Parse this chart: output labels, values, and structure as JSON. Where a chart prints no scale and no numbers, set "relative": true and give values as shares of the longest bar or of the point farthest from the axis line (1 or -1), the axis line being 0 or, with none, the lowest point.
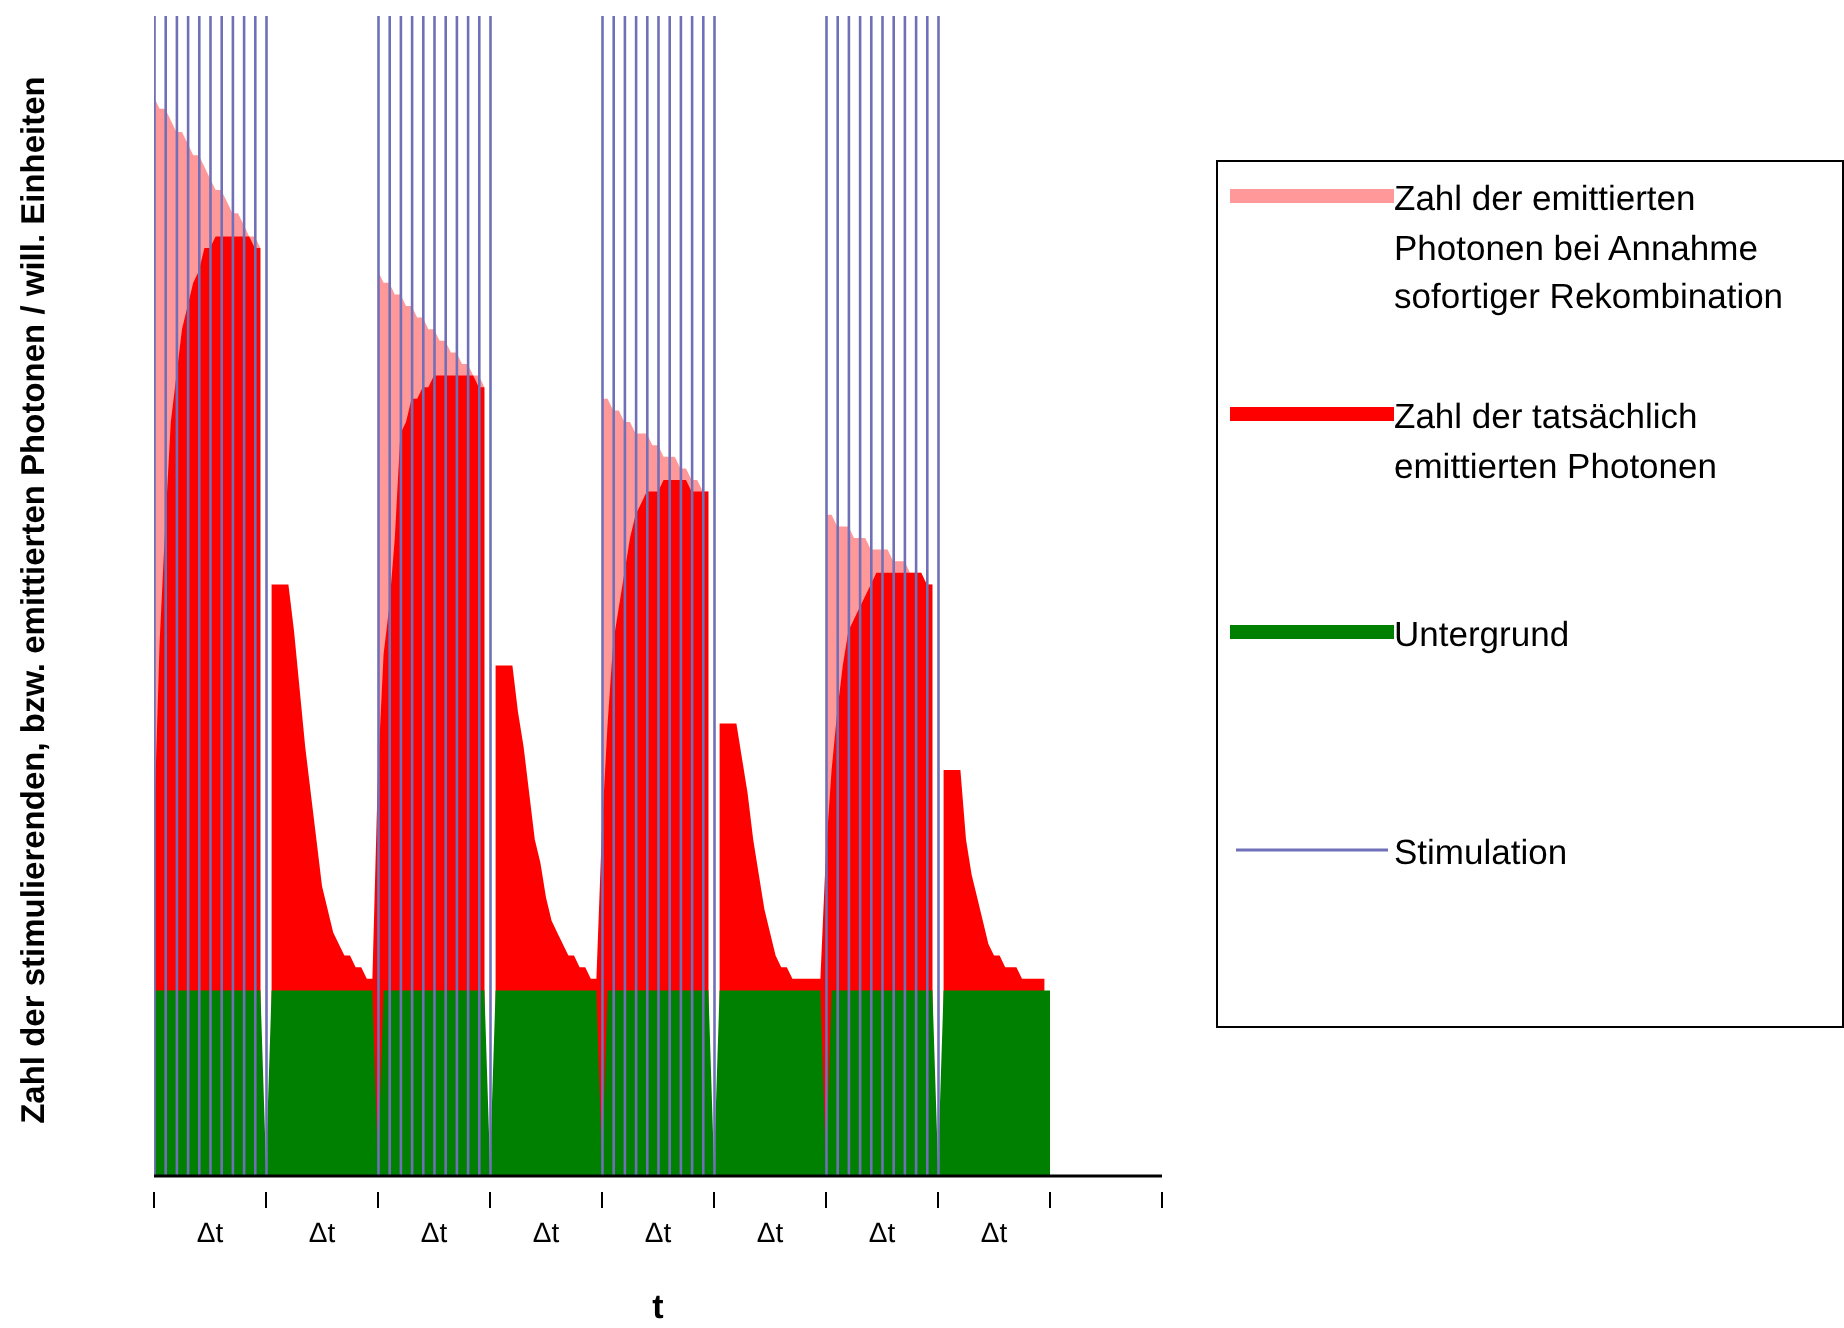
{
  "chart_data": {
    "type": "area",
    "relative": true,
    "xlabel": "t",
    "ylabel": "Zahl der stimulierenden, bzw. emittierten Photonen / will. Einheiten",
    "legend": "right",
    "categories": [
      null,
      null,
      null,
      null,
      null,
      null,
      null,
      null,
      null,
      null,
      "Δt",
      null,
      null,
      null,
      null,
      null,
      null,
      null,
      null,
      null,
      null,
      null,
      null,
      null,
      null,
      null,
      null,
      null,
      null,
      null,
      "Δt",
      null,
      null,
      null,
      null,
      null,
      null,
      null,
      null,
      null,
      null,
      null,
      null,
      null,
      null,
      null,
      null,
      null,
      null,
      null,
      "Δt",
      null,
      null,
      null,
      null,
      null,
      null,
      null,
      null,
      null,
      null,
      null,
      null,
      null,
      null,
      null,
      null,
      null,
      null,
      null,
      "Δt",
      null,
      null,
      null,
      null,
      null,
      null,
      null,
      null,
      null,
      null,
      null,
      null,
      null,
      null,
      null,
      null,
      null,
      null,
      null,
      "Δt",
      null,
      null,
      null,
      null,
      null,
      null,
      null,
      null,
      null,
      null,
      null,
      null,
      null,
      null,
      null,
      null,
      null,
      null,
      null,
      "Δt",
      null,
      null,
      null,
      null,
      null,
      null,
      null,
      null,
      null,
      null,
      null,
      null,
      null,
      null,
      null,
      null,
      null,
      null,
      null,
      "Δt",
      null,
      null,
      null,
      null,
      null,
      null,
      null,
      null,
      null,
      null,
      null,
      null,
      null,
      null,
      null,
      null,
      null,
      null,
      null,
      "Δt",
      null,
      null,
      null,
      null,
      null,
      null,
      null,
      null,
      null,
      null,
      null,
      null,
      null,
      null,
      null,
      null,
      null,
      null,
      null,
      null,
      null,
      null,
      null,
      null,
      null,
      null,
      null,
      null,
      null,
      null
    ],
    "series": [
      {
        "name": "Zahl der emittierten Photonen bei Annahme sofortiger Rekombination",
        "color": "#ff9999",
        "values": [
          0.93,
          0.92,
          0.92,
          0.91,
          0.9,
          0.9,
          0.89,
          0.88,
          0.88,
          0.87,
          0.86,
          0.85,
          0.85,
          0.84,
          0.83,
          0.83,
          0.82,
          0.81,
          0.81,
          0.8,
          null,
          null,
          null,
          null,
          null,
          null,
          null,
          null,
          null,
          null,
          null,
          null,
          null,
          null,
          null,
          null,
          null,
          null,
          null,
          null,
          0.78,
          0.77,
          0.77,
          0.76,
          0.76,
          0.75,
          0.75,
          0.74,
          0.74,
          0.73,
          0.73,
          0.72,
          0.72,
          0.71,
          0.71,
          0.7,
          0.7,
          0.69,
          0.69,
          0.68,
          null,
          null,
          null,
          null,
          null,
          null,
          null,
          null,
          null,
          null,
          null,
          null,
          null,
          null,
          null,
          null,
          null,
          null,
          null,
          null,
          0.67,
          0.67,
          0.66,
          0.66,
          0.65,
          0.65,
          0.64,
          0.64,
          0.64,
          0.63,
          0.63,
          0.62,
          0.62,
          0.62,
          0.61,
          0.61,
          0.6,
          0.6,
          0.59,
          0.59,
          null,
          null,
          null,
          null,
          null,
          null,
          null,
          null,
          null,
          null,
          null,
          null,
          null,
          null,
          null,
          null,
          null,
          null,
          null,
          null,
          0.57,
          0.57,
          0.56,
          0.56,
          0.56,
          0.55,
          0.55,
          0.55,
          0.54,
          0.54,
          0.54,
          0.54,
          0.53,
          0.53,
          0.53,
          0.52,
          0.52,
          0.52,
          0.51,
          0.51,
          null,
          null,
          null,
          null,
          null,
          null,
          null,
          null,
          null,
          null,
          null,
          null,
          null,
          null,
          null,
          null,
          null,
          null,
          null,
          null,
          null,
          null,
          null,
          null,
          null,
          null,
          null,
          null,
          null,
          null,
          null,
          null,
          null,
          null,
          null,
          null,
          null,
          null,
          null,
          null,
          null
        ]
      },
      {
        "name": "Zahl der tatsächlich emittierten Photonen",
        "color": "#ff0000",
        "values": [
          0.3,
          0.46,
          0.56,
          0.65,
          0.69,
          0.73,
          0.75,
          0.77,
          0.78,
          0.8,
          0.8,
          0.81,
          0.81,
          0.81,
          0.81,
          0.81,
          0.81,
          0.81,
          0.8,
          0.8,
          null,
          0.51,
          0.51,
          0.51,
          0.51,
          0.47,
          0.42,
          0.37,
          0.33,
          0.29,
          0.25,
          0.23,
          0.21,
          0.2,
          0.19,
          0.19,
          0.18,
          0.18,
          0.17,
          0.17,
          0.35,
          0.45,
          0.49,
          0.55,
          0.64,
          0.65,
          0.67,
          0.67,
          0.68,
          0.68,
          0.69,
          0.69,
          0.69,
          0.69,
          0.69,
          0.69,
          0.69,
          0.69,
          0.68,
          0.68,
          null,
          0.44,
          0.44,
          0.44,
          0.44,
          0.4,
          0.37,
          0.33,
          0.29,
          0.27,
          0.24,
          0.22,
          0.21,
          0.2,
          0.19,
          0.19,
          0.18,
          0.18,
          0.17,
          0.17,
          0.3,
          0.39,
          0.46,
          0.49,
          0.52,
          0.55,
          0.57,
          0.58,
          0.59,
          0.59,
          0.59,
          0.6,
          0.6,
          0.6,
          0.6,
          0.6,
          0.59,
          0.59,
          0.59,
          0.59,
          null,
          0.39,
          0.39,
          0.39,
          0.39,
          0.36,
          0.33,
          0.29,
          0.26,
          0.23,
          0.21,
          0.19,
          0.18,
          0.18,
          0.17,
          0.17,
          0.17,
          0.17,
          0.17,
          0.17,
          0.28,
          0.35,
          0.4,
          0.44,
          0.47,
          0.48,
          0.49,
          0.5,
          0.51,
          0.52,
          0.52,
          0.52,
          0.52,
          0.52,
          0.52,
          0.52,
          0.52,
          0.52,
          0.51,
          0.51,
          null,
          0.35,
          0.35,
          0.35,
          0.35,
          0.29,
          0.26,
          0.24,
          0.22,
          0.2,
          0.19,
          0.19,
          0.18,
          0.18,
          0.18,
          0.17,
          0.17,
          0.17,
          0.17,
          0.17,
          null,
          null,
          null,
          null,
          null,
          null,
          null,
          null,
          null,
          null,
          null,
          null,
          null,
          null,
          null,
          null,
          null,
          null,
          null,
          null,
          null
        ]
      },
      {
        "name": "Untergrund",
        "color": "#008000",
        "values": [
          0.16,
          0.16,
          0.16,
          0.16,
          0.16,
          0.16,
          0.16,
          0.16,
          0.16,
          0.16,
          0.16,
          0.16,
          0.16,
          0.16,
          0.16,
          0.16,
          0.16,
          0.16,
          0.16,
          0.16,
          0.01,
          0.16,
          0.16,
          0.16,
          0.16,
          0.16,
          0.16,
          0.16,
          0.16,
          0.16,
          0.16,
          0.16,
          0.16,
          0.16,
          0.16,
          0.16,
          0.16,
          0.16,
          0.16,
          0.16,
          0.01,
          0.16,
          0.16,
          0.16,
          0.16,
          0.16,
          0.16,
          0.16,
          0.16,
          0.16,
          0.16,
          0.16,
          0.16,
          0.16,
          0.16,
          0.16,
          0.16,
          0.16,
          0.16,
          0.16,
          0.01,
          0.16,
          0.16,
          0.16,
          0.16,
          0.16,
          0.16,
          0.16,
          0.16,
          0.16,
          0.16,
          0.16,
          0.16,
          0.16,
          0.16,
          0.16,
          0.16,
          0.16,
          0.16,
          0.16,
          0.01,
          0.16,
          0.16,
          0.16,
          0.16,
          0.16,
          0.16,
          0.16,
          0.16,
          0.16,
          0.16,
          0.16,
          0.16,
          0.16,
          0.16,
          0.16,
          0.16,
          0.16,
          0.16,
          0.16,
          0.01,
          0.16,
          0.16,
          0.16,
          0.16,
          0.16,
          0.16,
          0.16,
          0.16,
          0.16,
          0.16,
          0.16,
          0.16,
          0.16,
          0.16,
          0.16,
          0.16,
          0.16,
          0.16,
          0.16,
          0.01,
          0.16,
          0.16,
          0.16,
          0.16,
          0.16,
          0.16,
          0.16,
          0.16,
          0.16,
          0.16,
          0.16,
          0.16,
          0.16,
          0.16,
          0.16,
          0.16,
          0.16,
          0.16,
          0.16,
          0.01,
          0.16,
          0.16,
          0.16,
          0.16,
          0.16,
          0.16,
          0.16,
          0.16,
          0.16,
          0.16,
          0.16,
          0.16,
          0.16,
          0.16,
          0.16,
          0.16,
          0.16,
          0.16,
          0.16,
          0.16,
          null,
          null,
          null,
          null,
          null,
          null,
          null,
          null,
          null,
          null,
          null,
          null,
          null,
          null,
          null,
          null,
          null,
          null,
          null,
          null
        ]
      },
      {
        "name": "Stimulation",
        "type": "bar",
        "color": "#7070b8",
        "values": [
          1,
          null,
          1,
          null,
          1,
          null,
          1,
          null,
          1,
          null,
          1,
          null,
          1,
          null,
          1,
          null,
          1,
          null,
          1,
          null,
          1,
          null,
          null,
          null,
          null,
          null,
          null,
          null,
          null,
          null,
          null,
          null,
          null,
          null,
          null,
          null,
          null,
          null,
          null,
          null,
          1,
          null,
          1,
          null,
          1,
          null,
          1,
          null,
          1,
          null,
          1,
          null,
          1,
          null,
          1,
          null,
          1,
          null,
          1,
          null,
          1,
          null,
          null,
          null,
          null,
          null,
          null,
          null,
          null,
          null,
          null,
          null,
          null,
          null,
          null,
          null,
          null,
          null,
          null,
          null,
          1,
          null,
          1,
          null,
          1,
          null,
          1,
          null,
          1,
          null,
          1,
          null,
          1,
          null,
          1,
          null,
          1,
          null,
          1,
          null,
          1,
          null,
          null,
          null,
          null,
          null,
          null,
          null,
          null,
          null,
          null,
          null,
          null,
          null,
          null,
          null,
          null,
          null,
          null,
          null,
          1,
          null,
          1,
          null,
          1,
          null,
          1,
          null,
          1,
          null,
          1,
          null,
          1,
          null,
          1,
          null,
          1,
          null,
          1,
          null,
          1,
          null,
          null,
          null,
          null,
          null,
          null,
          null,
          null,
          null,
          null,
          null,
          null,
          null,
          null,
          null,
          null,
          null,
          null,
          null,
          null,
          null,
          null,
          null,
          null,
          null,
          null,
          null,
          null,
          null,
          null,
          null,
          null,
          null,
          null,
          null,
          null,
          null,
          null,
          null,
          null
        ]
      }
    ]
  }
}
